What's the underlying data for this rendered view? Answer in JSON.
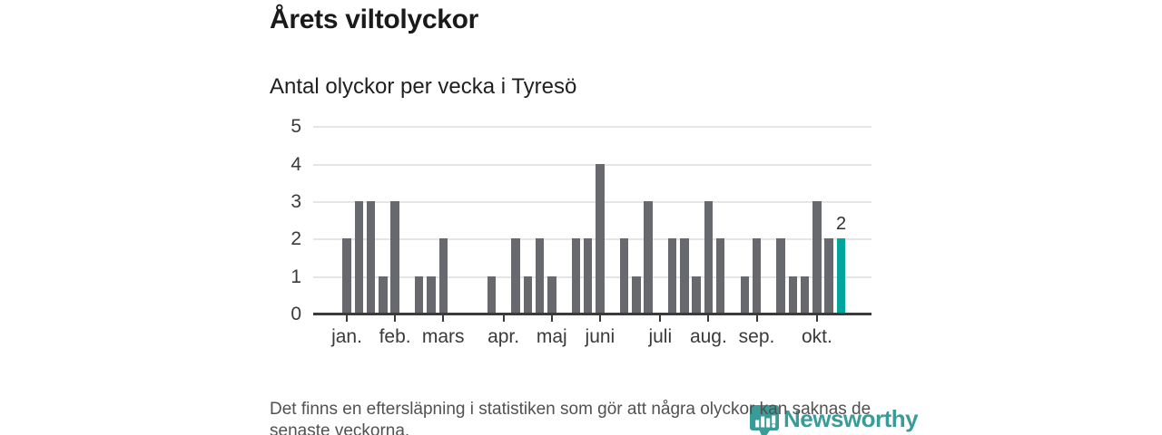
{
  "title": "Årets viltolyckor",
  "subtitle": "Antal olyckor per vecka i Tyresö",
  "footer": {
    "note": "Det finns en eftersläpning i statistiken som gör att några olyckor kan saknas de senaste veckorna."
  },
  "logo": {
    "text": "Newsworthy",
    "icon": "newsworthy-pin-bar-chart-icon"
  },
  "colors": {
    "bar": "#68686f",
    "highlight": "#00a69d",
    "axis": "#3b3b3b",
    "grid": "#e5e5e5",
    "text": "#1a1a1a",
    "muted_text": "#515151",
    "logo_teal": "#3a9c98"
  },
  "chart_data": {
    "type": "bar",
    "title": "Årets viltolyckor",
    "subtitle": "Antal olyckor per vecka i Tyresö",
    "xlabel": "",
    "ylabel": "",
    "x_unit": "week",
    "ylim": [
      0,
      5
    ],
    "yticks": [
      0,
      1,
      2,
      3,
      4,
      5
    ],
    "grid": true,
    "legend_position": "none",
    "values": [
      2,
      3,
      3,
      1,
      3,
      0,
      1,
      1,
      2,
      0,
      0,
      0,
      1,
      0,
      2,
      1,
      2,
      1,
      0,
      2,
      2,
      4,
      0,
      2,
      1,
      3,
      0,
      2,
      2,
      1,
      3,
      2,
      0,
      1,
      2,
      0,
      2,
      1,
      1,
      3,
      2,
      2
    ],
    "month_ticks": [
      {
        "label": "jan.",
        "pos": 0
      },
      {
        "label": "feb.",
        "pos": 4
      },
      {
        "label": "mars",
        "pos": 8
      },
      {
        "label": "apr.",
        "pos": 13
      },
      {
        "label": "maj",
        "pos": 17
      },
      {
        "label": "juni",
        "pos": 21
      },
      {
        "label": "juli",
        "pos": 26
      },
      {
        "label": "aug.",
        "pos": 30
      },
      {
        "label": "sep.",
        "pos": 34
      },
      {
        "label": "okt.",
        "pos": 39
      }
    ],
    "highlight_last": true,
    "last_value_label": "2"
  }
}
